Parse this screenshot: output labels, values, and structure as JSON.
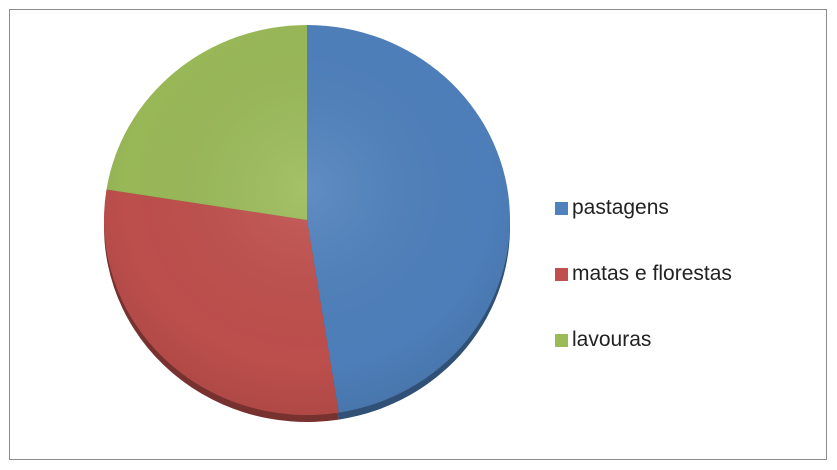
{
  "chart_data": {
    "type": "pie",
    "title": "",
    "legend_position": "right",
    "slices": [
      {
        "label": "pastagens",
        "value": 47.5,
        "color": "#4F81BD"
      },
      {
        "label": "matas e florestas",
        "value": 30.0,
        "color": "#C0504D"
      },
      {
        "label": "lavouras",
        "value": 22.5,
        "color": "#9BBB59"
      }
    ]
  }
}
